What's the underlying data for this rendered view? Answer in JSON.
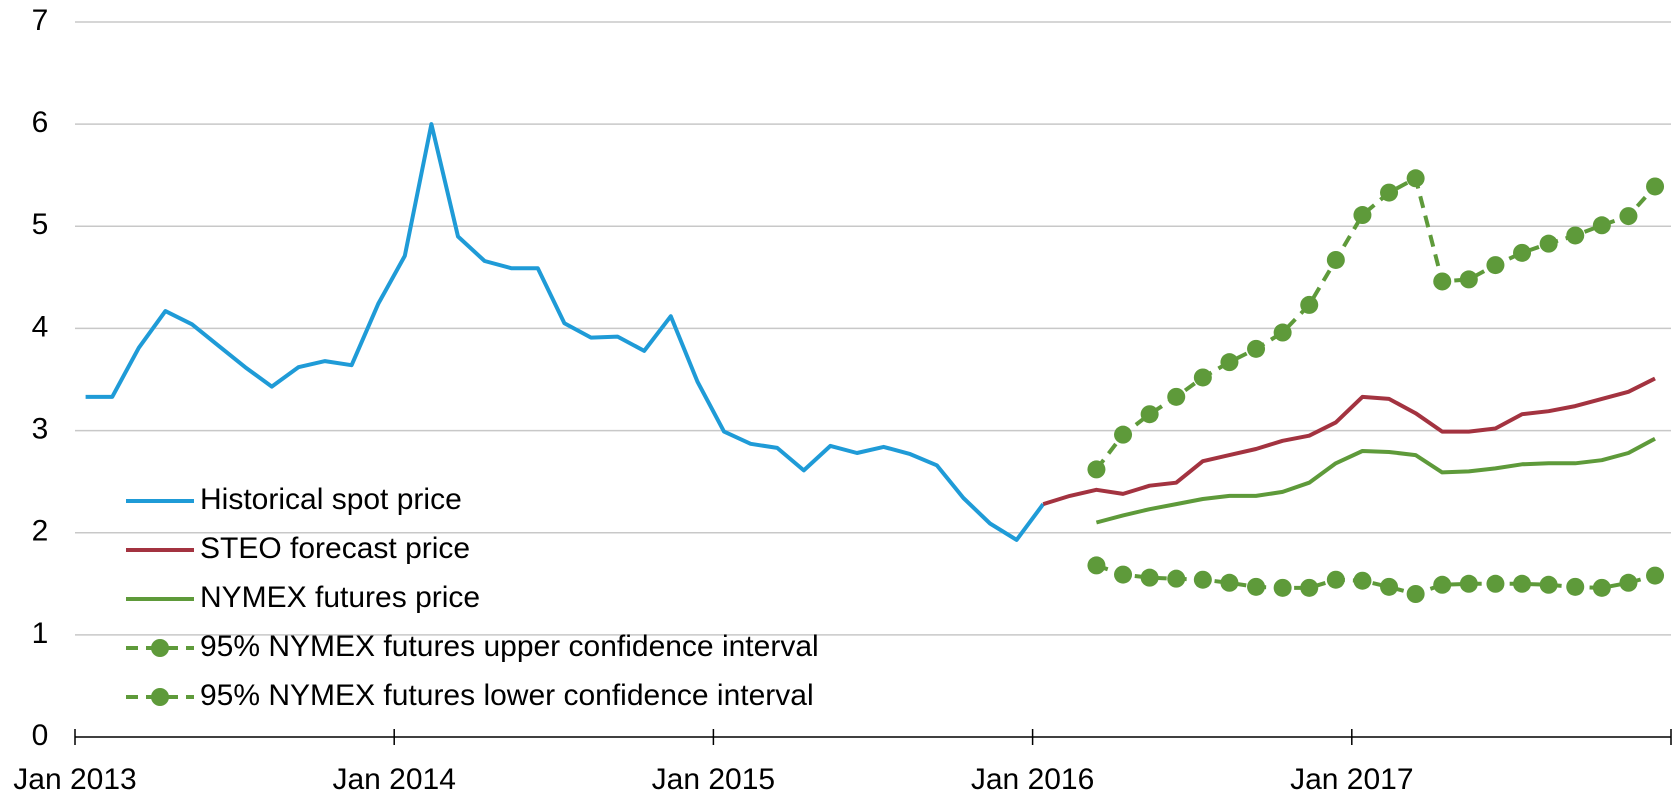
{
  "chart_data": {
    "type": "line",
    "categories": [
      "Jan 2013",
      null,
      null,
      null,
      null,
      null,
      null,
      null,
      null,
      null,
      null,
      null,
      "Jan 2014",
      null,
      null,
      null,
      null,
      null,
      null,
      null,
      null,
      null,
      null,
      null,
      "Jan 2015",
      null,
      null,
      null,
      null,
      null,
      null,
      null,
      null,
      null,
      null,
      null,
      "Jan 2016",
      null,
      null,
      null,
      null,
      null,
      null,
      null,
      null,
      null,
      null,
      null,
      "Jan 2017",
      null,
      null,
      null,
      null,
      null,
      null,
      null,
      null,
      null,
      null,
      null
    ],
    "ylim": [
      0,
      7
    ],
    "yticks": [
      0,
      1,
      2,
      3,
      4,
      5,
      6,
      7
    ],
    "grid": true,
    "legend": "lower-left",
    "series": [
      {
        "name": "Historical spot price",
        "color": "#1f9bd7",
        "dashed": false,
        "markers": false,
        "values": [
          3.33,
          3.33,
          3.81,
          4.17,
          4.04,
          3.83,
          3.62,
          3.43,
          3.62,
          3.68,
          3.64,
          4.24,
          4.71,
          6.0,
          4.9,
          4.66,
          4.59,
          4.59,
          4.05,
          3.91,
          3.92,
          3.78,
          4.12,
          3.48,
          2.99,
          2.87,
          2.83,
          2.61,
          2.85,
          2.78,
          2.84,
          2.77,
          2.66,
          2.34,
          2.09,
          1.93,
          2.28,
          null,
          null,
          null,
          null,
          null,
          null,
          null,
          null,
          null,
          null,
          null,
          null,
          null,
          null,
          null,
          null,
          null,
          null,
          null,
          null,
          null,
          null,
          null
        ]
      },
      {
        "name": "STEO forecast price",
        "color": "#a33340",
        "dashed": false,
        "markers": false,
        "values": [
          null,
          null,
          null,
          null,
          null,
          null,
          null,
          null,
          null,
          null,
          null,
          null,
          null,
          null,
          null,
          null,
          null,
          null,
          null,
          null,
          null,
          null,
          null,
          null,
          null,
          null,
          null,
          null,
          null,
          null,
          null,
          null,
          null,
          null,
          null,
          null,
          2.28,
          2.36,
          2.42,
          2.38,
          2.46,
          2.49,
          2.7,
          2.76,
          2.82,
          2.9,
          2.95,
          3.08,
          3.33,
          3.31,
          3.17,
          2.99,
          2.99,
          3.02,
          3.16,
          3.19,
          3.24,
          3.31,
          3.38,
          3.51
        ]
      },
      {
        "name": "NYMEX futures price",
        "color": "#5e9a3a",
        "dashed": false,
        "markers": false,
        "values": [
          null,
          null,
          null,
          null,
          null,
          null,
          null,
          null,
          null,
          null,
          null,
          null,
          null,
          null,
          null,
          null,
          null,
          null,
          null,
          null,
          null,
          null,
          null,
          null,
          null,
          null,
          null,
          null,
          null,
          null,
          null,
          null,
          null,
          null,
          null,
          null,
          null,
          null,
          2.1,
          2.17,
          2.23,
          2.28,
          2.33,
          2.36,
          2.36,
          2.4,
          2.49,
          2.68,
          2.8,
          2.79,
          2.76,
          2.59,
          2.6,
          2.63,
          2.67,
          2.68,
          2.68,
          2.71,
          2.78,
          2.92
        ]
      },
      {
        "name": "95% NYMEX futures upper confidence interval",
        "color": "#5e9a3a",
        "dashed": true,
        "markers": true,
        "values": [
          null,
          null,
          null,
          null,
          null,
          null,
          null,
          null,
          null,
          null,
          null,
          null,
          null,
          null,
          null,
          null,
          null,
          null,
          null,
          null,
          null,
          null,
          null,
          null,
          null,
          null,
          null,
          null,
          null,
          null,
          null,
          null,
          null,
          null,
          null,
          null,
          null,
          null,
          2.62,
          2.96,
          3.16,
          3.33,
          3.52,
          3.67,
          3.8,
          3.96,
          4.23,
          4.67,
          5.11,
          5.33,
          5.47,
          4.46,
          4.48,
          4.62,
          4.74,
          4.83,
          4.91,
          5.01,
          5.1,
          5.39
        ]
      },
      {
        "name": "95% NYMEX futures lower confidence interval",
        "color": "#5e9a3a",
        "dashed": true,
        "markers": true,
        "values": [
          null,
          null,
          null,
          null,
          null,
          null,
          null,
          null,
          null,
          null,
          null,
          null,
          null,
          null,
          null,
          null,
          null,
          null,
          null,
          null,
          null,
          null,
          null,
          null,
          null,
          null,
          null,
          null,
          null,
          null,
          null,
          null,
          null,
          null,
          null,
          null,
          null,
          null,
          1.68,
          1.59,
          1.56,
          1.55,
          1.54,
          1.51,
          1.47,
          1.46,
          1.46,
          1.54,
          1.53,
          1.47,
          1.4,
          1.49,
          1.5,
          1.5,
          1.5,
          1.49,
          1.47,
          1.46,
          1.51,
          1.58
        ]
      }
    ]
  }
}
